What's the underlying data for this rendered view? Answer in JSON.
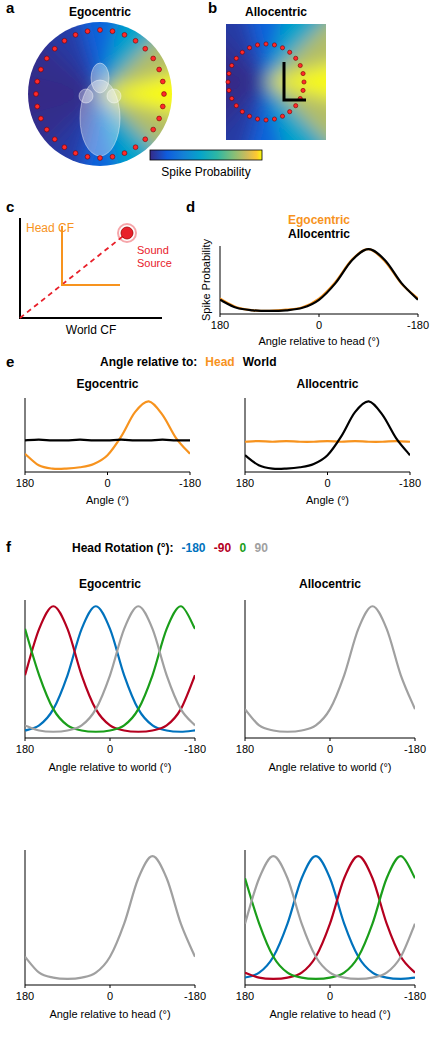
{
  "panel_letters": [
    "a",
    "b",
    "c",
    "d",
    "e",
    "f"
  ],
  "colorbar": {
    "label": "Spike Probability",
    "range": [
      0,
      1
    ]
  },
  "diagram": {
    "head_frame": "Head CF",
    "sound_source": "Sound Source",
    "world_frame": "World CF"
  },
  "legend_titles": {
    "e": "Angle relative to:",
    "f": "Head Rotation (°):"
  },
  "chart_data": [
    {
      "type": "polar_heatmap",
      "title": "Egocentric",
      "angles": [
        180,
        150,
        120,
        90,
        60,
        30,
        0,
        -30,
        -60,
        -90,
        -120,
        -150
      ],
      "values": [
        0.18,
        0.05,
        0.01,
        0.0,
        0.01,
        0.05,
        0.18,
        0.45,
        0.82,
        1.0,
        0.82,
        0.45
      ]
    },
    {
      "type": "polar_heatmap",
      "title": "Allocentric",
      "angles": [
        180,
        150,
        120,
        90,
        60,
        30,
        0,
        -30,
        -60,
        -90,
        -120,
        -150
      ],
      "values": [
        0.18,
        0.05,
        0.01,
        0.0,
        0.01,
        0.05,
        0.18,
        0.45,
        0.82,
        1.0,
        0.82,
        0.45
      ]
    },
    {
      "type": "line",
      "x_label": "Angle relative to head (°)",
      "y_label": "Spike Probability",
      "x": [
        180,
        150,
        120,
        90,
        60,
        30,
        0,
        -30,
        -60,
        -90,
        -120,
        -150,
        -180
      ],
      "xlim": [
        180,
        -180
      ],
      "xticks": [
        180,
        0,
        -180
      ],
      "ylim": [
        -0.05,
        1.05
      ],
      "tick_labels": "x",
      "series": [
        {
          "name": "Egocentric",
          "color": "#f7931e",
          "values": [
            0.2,
            0.06,
            0.01,
            0.0,
            0.02,
            0.06,
            0.2,
            0.47,
            0.83,
            1.0,
            0.8,
            0.44,
            0.2
          ]
        },
        {
          "name": "Allocentric",
          "color": "#000000",
          "values": [
            0.18,
            0.05,
            0.01,
            0.0,
            0.01,
            0.05,
            0.18,
            0.45,
            0.82,
            1.0,
            0.82,
            0.45,
            0.18
          ]
        }
      ]
    },
    {
      "type": "line",
      "title": "Egocentric",
      "x_label": "Angle (°)",
      "x": [
        180,
        150,
        120,
        90,
        60,
        30,
        0,
        -30,
        -60,
        -90,
        -120,
        -150,
        -180
      ],
      "xlim": [
        180,
        -180
      ],
      "xticks": [
        180,
        0,
        -180
      ],
      "ylim": [
        -0.05,
        1.05
      ],
      "tick_labels": "x",
      "series": [
        {
          "name": "Head",
          "color": "#f7931e",
          "values": [
            0.22,
            0.05,
            0.0,
            0.0,
            0.02,
            0.07,
            0.2,
            0.48,
            0.84,
            1.0,
            0.8,
            0.45,
            0.22
          ]
        },
        {
          "name": "World",
          "color": "#000000",
          "values": [
            0.42,
            0.43,
            0.42,
            0.42,
            0.43,
            0.42,
            0.42,
            0.43,
            0.42,
            0.42,
            0.43,
            0.42,
            0.42
          ]
        }
      ]
    },
    {
      "type": "line",
      "title": "Allocentric",
      "x_label": "Angle (°)",
      "x": [
        180,
        150,
        120,
        90,
        60,
        30,
        0,
        -30,
        -60,
        -90,
        -120,
        -150,
        -180
      ],
      "xlim": [
        180,
        -180
      ],
      "xticks": [
        180,
        0,
        -180
      ],
      "ylim": [
        -0.05,
        1.05
      ],
      "tick_labels": "x",
      "series": [
        {
          "color": "#f7931e",
          "values": [
            0.4,
            0.41,
            0.4,
            0.41,
            0.4,
            0.4,
            0.41,
            0.4,
            0.41,
            0.4,
            0.4,
            0.41,
            0.4
          ]
        },
        {
          "color": "#000000",
          "values": [
            0.2,
            0.05,
            0.0,
            0.0,
            0.02,
            0.07,
            0.2,
            0.48,
            0.84,
            1.0,
            0.8,
            0.45,
            0.2
          ]
        }
      ]
    },
    {
      "type": "line",
      "title": "Egocentric",
      "x_label": "Angle relative to world (°)",
      "x": [
        180,
        150,
        120,
        90,
        60,
        30,
        0,
        -30,
        -60,
        -90,
        -120,
        -150,
        -180
      ],
      "xlim": [
        180,
        -180
      ],
      "xticks": [
        180,
        0,
        -180
      ],
      "ylim": [
        -0.05,
        1.05
      ],
      "tick_labels": "x",
      "series": [
        {
          "name": "-180",
          "color": "#0072bd",
          "values": [
            0.01,
            0.05,
            0.18,
            0.45,
            0.82,
            1.0,
            0.82,
            0.45,
            0.18,
            0.05,
            0.01,
            0.0,
            0.01
          ]
        },
        {
          "name": "-90",
          "color": "#b5001f",
          "values": [
            0.45,
            0.82,
            1.0,
            0.82,
            0.45,
            0.18,
            0.05,
            0.01,
            0.0,
            0.01,
            0.05,
            0.18,
            0.45
          ]
        },
        {
          "name": "0",
          "color": "#1a9e1a",
          "values": [
            0.82,
            0.45,
            0.18,
            0.05,
            0.01,
            0.0,
            0.01,
            0.05,
            0.18,
            0.45,
            0.82,
            1.0,
            0.82
          ]
        },
        {
          "name": "90",
          "color": "#a0a0a0",
          "values": [
            0.05,
            0.01,
            0.0,
            0.01,
            0.05,
            0.18,
            0.45,
            0.82,
            1.0,
            0.82,
            0.45,
            0.18,
            0.05
          ]
        }
      ]
    },
    {
      "type": "line",
      "title": "Allocentric",
      "x_label": "Angle relative to world (°)",
      "x": [
        180,
        150,
        120,
        90,
        60,
        30,
        0,
        -30,
        -60,
        -90,
        -120,
        -150,
        -180
      ],
      "xlim": [
        180,
        -180
      ],
      "xticks": [
        180,
        0,
        -180
      ],
      "ylim": [
        -0.05,
        1.05
      ],
      "tick_labels": "x",
      "series": [
        {
          "color": "#a0a0a0",
          "values": [
            0.18,
            0.05,
            0.01,
            0.0,
            0.01,
            0.05,
            0.18,
            0.45,
            0.82,
            1.0,
            0.82,
            0.45,
            0.18
          ]
        }
      ]
    },
    {
      "type": "line",
      "x_label": "Angle relative to head (°)",
      "x": [
        180,
        150,
        120,
        90,
        60,
        30,
        0,
        -30,
        -60,
        -90,
        -120,
        -150,
        -180
      ],
      "xlim": [
        180,
        -180
      ],
      "xticks": [
        180,
        0,
        -180
      ],
      "ylim": [
        -0.05,
        1.05
      ],
      "tick_labels": "x",
      "series": [
        {
          "color": "#a0a0a0",
          "values": [
            0.18,
            0.05,
            0.01,
            0.0,
            0.01,
            0.05,
            0.18,
            0.45,
            0.82,
            1.0,
            0.82,
            0.45,
            0.18
          ]
        }
      ]
    },
    {
      "type": "line",
      "x_label": "Angle relative to head (°)",
      "x": [
        180,
        150,
        120,
        90,
        60,
        30,
        0,
        -30,
        -60,
        -90,
        -120,
        -150,
        -180
      ],
      "xlim": [
        180,
        -180
      ],
      "xticks": [
        180,
        0,
        -180
      ],
      "ylim": [
        -0.05,
        1.05
      ],
      "tick_labels": "x",
      "series": [
        {
          "color": "#0072bd",
          "values": [
            0.01,
            0.05,
            0.18,
            0.45,
            0.82,
            1.0,
            0.82,
            0.45,
            0.18,
            0.05,
            0.01,
            0.0,
            0.01
          ]
        },
        {
          "color": "#b5001f",
          "values": [
            0.05,
            0.01,
            0.0,
            0.01,
            0.05,
            0.18,
            0.45,
            0.82,
            1.0,
            0.82,
            0.45,
            0.18,
            0.05
          ]
        },
        {
          "color": "#1a9e1a",
          "values": [
            0.82,
            0.45,
            0.18,
            0.05,
            0.01,
            0.0,
            0.01,
            0.05,
            0.18,
            0.45,
            0.82,
            1.0,
            0.82
          ]
        },
        {
          "color": "#a0a0a0",
          "values": [
            0.45,
            0.82,
            1.0,
            0.82,
            0.45,
            0.18,
            0.05,
            0.01,
            0.0,
            0.01,
            0.05,
            0.18,
            0.45
          ]
        }
      ]
    }
  ]
}
